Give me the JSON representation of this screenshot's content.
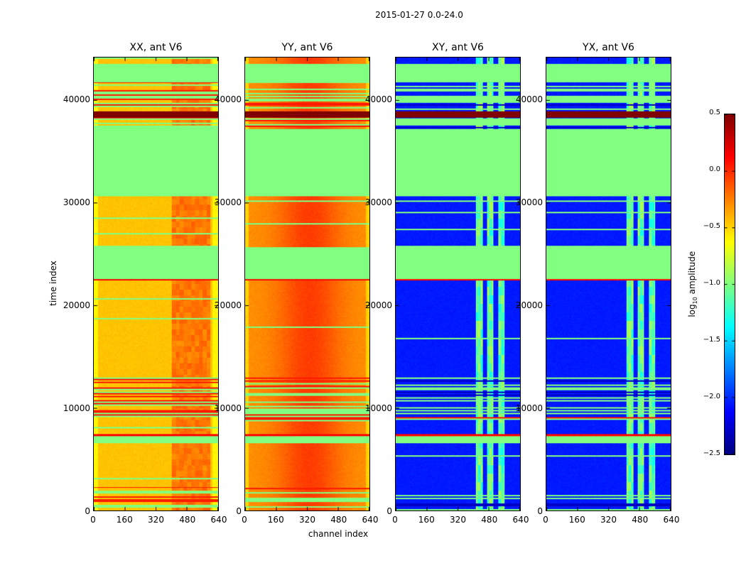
{
  "chart_data": {
    "type": "heatmap",
    "title": "2015-01-27 0.0-24.0",
    "xlabel": "channel index",
    "ylabel": "time index",
    "xlim": [
      0,
      640
    ],
    "ylim": [
      0,
      44100
    ],
    "xticks": [
      "0",
      "160",
      "320",
      "480",
      "640"
    ],
    "yticks": [
      "0",
      "10000",
      "20000",
      "30000",
      "40000"
    ],
    "colorbar": {
      "label": "log10 amplitude",
      "label_main": "log",
      "label_sub": "10",
      "label_rest": " amplitude",
      "range": [
        -2.5,
        0.5
      ],
      "ticks": [
        "0.5",
        "0.0",
        "−0.5",
        "−1.0",
        "−1.5",
        "−2.0",
        "−2.5"
      ],
      "colormap": "jet"
    },
    "flag_value": -1.0,
    "segments": [
      {
        "t": [
          0,
          2300
        ],
        "kind": "lines"
      },
      {
        "t": [
          2300,
          6600
        ],
        "kind": "data"
      },
      {
        "t": [
          6600,
          7300
        ],
        "kind": "flag"
      },
      {
        "t": [
          7300,
          7450
        ],
        "kind": "hot"
      },
      {
        "t": [
          7450,
          8700
        ],
        "kind": "data"
      },
      {
        "t": [
          8700,
          9800
        ],
        "kind": "lines_hot"
      },
      {
        "t": [
          9800,
          11600
        ],
        "kind": "lines"
      },
      {
        "t": [
          11600,
          13000
        ],
        "kind": "lines"
      },
      {
        "t": [
          13000,
          22400
        ],
        "kind": "data"
      },
      {
        "t": [
          22400,
          22600
        ],
        "kind": "hot"
      },
      {
        "t": [
          22600,
          25700
        ],
        "kind": "flag"
      },
      {
        "t": [
          25700,
          30600
        ],
        "kind": "data"
      },
      {
        "t": [
          30600,
          37200
        ],
        "kind": "flag"
      },
      {
        "t": [
          37200,
          38300
        ],
        "kind": "lines"
      },
      {
        "t": [
          38300,
          38900
        ],
        "kind": "dark"
      },
      {
        "t": [
          38900,
          41700
        ],
        "kind": "lines"
      },
      {
        "t": [
          41700,
          43500
        ],
        "kind": "flag"
      },
      {
        "t": [
          43500,
          44100
        ],
        "kind": "data"
      }
    ],
    "panels": [
      {
        "title": "XX, ant V6",
        "base": -0.45,
        "profile": "xx"
      },
      {
        "title": "YY, ant V6",
        "base": -0.3,
        "profile": "yy"
      },
      {
        "title": "XY, ant V6",
        "base": -2.05,
        "profile": "cross"
      },
      {
        "title": "YX, ant V6",
        "base": -2.05,
        "profile": "cross"
      }
    ]
  }
}
